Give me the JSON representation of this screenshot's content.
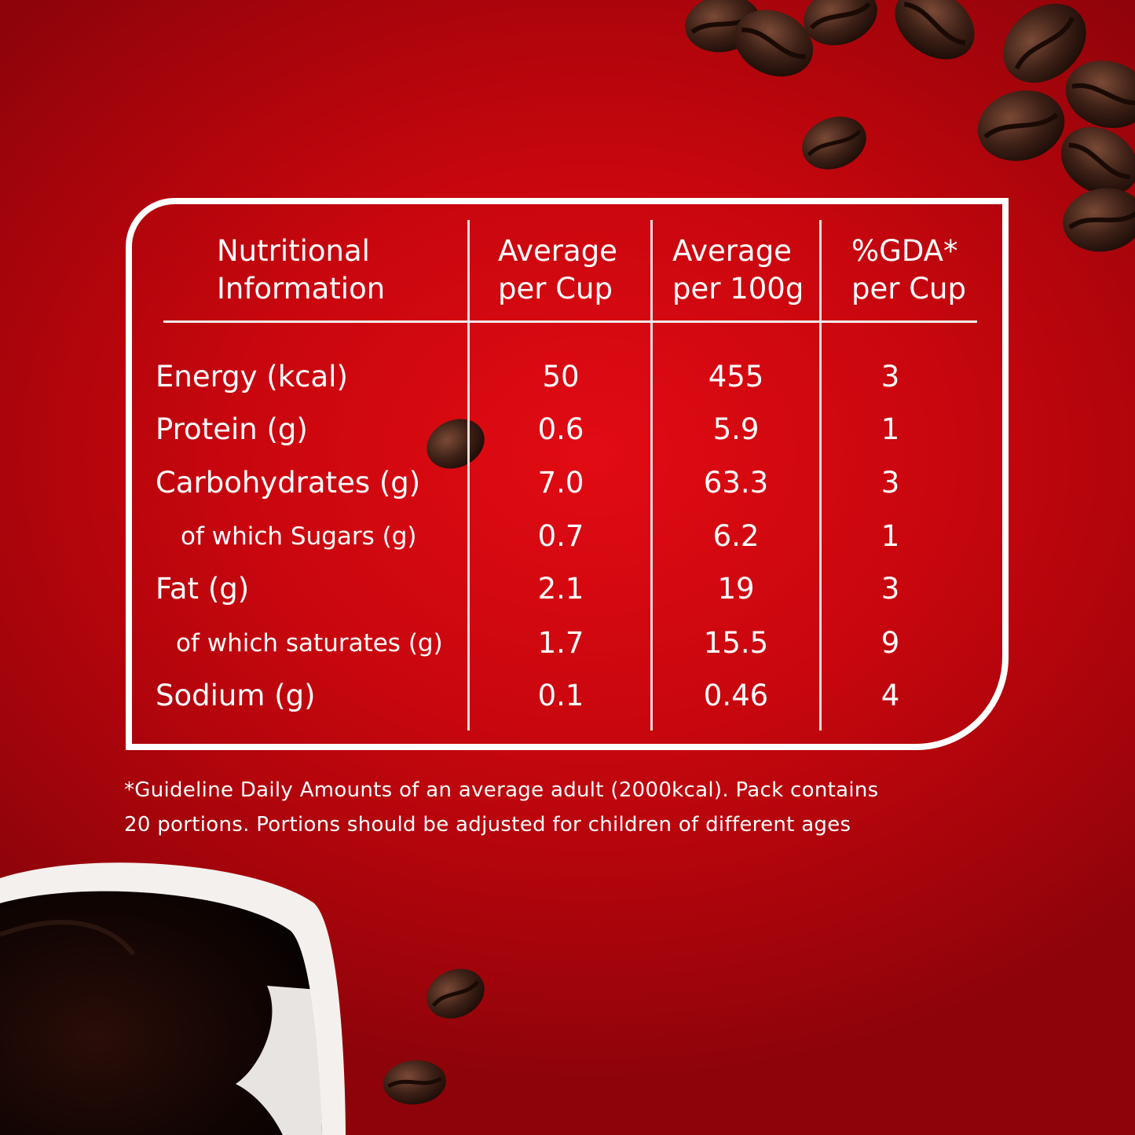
{
  "colors": {
    "background": "#c8060e",
    "text": "#ffffff",
    "frame": "#ffffff"
  },
  "header": {
    "col0": [
      "Nutritional",
      "Information"
    ],
    "col1": [
      "Average",
      "per Cup"
    ],
    "col2": [
      "Average",
      "per 100g"
    ],
    "col3": [
      "%GDA*",
      "per Cup"
    ]
  },
  "rows": [
    {
      "label": "Energy (kcal)",
      "per_cup": "50",
      "per_100g": "455",
      "gda": "3",
      "sub": false
    },
    {
      "label": "Protein (g)",
      "per_cup": "0.6",
      "per_100g": "5.9",
      "gda": "1",
      "sub": false
    },
    {
      "label": "Carbohydrates (g)",
      "per_cup": "7.0",
      "per_100g": "63.3",
      "gda": "3",
      "sub": false
    },
    {
      "label": "of which Sugars (g)",
      "per_cup": "0.7",
      "per_100g": "6.2",
      "gda": "1",
      "sub": true
    },
    {
      "label": "Fat (g)",
      "per_cup": "2.1",
      "per_100g": "19",
      "gda": "3",
      "sub": false
    },
    {
      "label": "of which saturates (g)",
      "per_cup": "1.7",
      "per_100g": "15.5",
      "gda": "9",
      "sub": true
    },
    {
      "label": "Sodium (g)",
      "per_cup": "0.1",
      "per_100g": "0.46",
      "gda": "4",
      "sub": false
    }
  ],
  "footnote": [
    "*Guideline Daily Amounts of an average adult (2000kcal). Pack contains",
    "20 portions. Portions should be adjusted for children of different ages"
  ],
  "decor": {
    "beans_icon": "coffee-beans-image",
    "cup_icon": "coffee-cup-image"
  }
}
